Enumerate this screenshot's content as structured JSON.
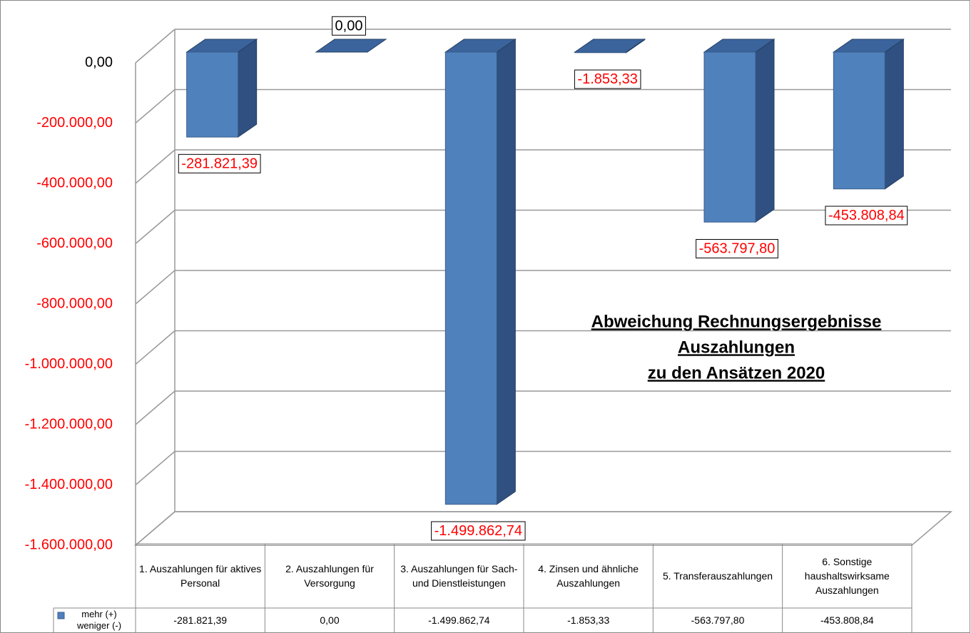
{
  "chart_data": {
    "type": "bar3d",
    "title": [
      "Abweichung Rechnungsergebnisse",
      "Auszahlungen",
      "zu den Ansätzen 2020"
    ],
    "categories": [
      "1. Auszahlungen für aktives Personal",
      "2. Auszahlungen für Versorgung",
      "3. Auszahlungen für Sach- und Dienstleistungen",
      "4. Zinsen und ähnliche Auszahlungen",
      "5. Transferauszahlungen",
      "6. Sonstige haushaltswirksame Auszahlungen"
    ],
    "series": [
      {
        "name": "mehr (+) weniger (-)",
        "color": "#4f81bd",
        "values": [
          -281821.39,
          0,
          -1499862.74,
          -1853.33,
          -563797.8,
          -453808.84
        ],
        "value_labels": [
          "-281.821,39",
          "0,00",
          "-1.499.862,74",
          "-1.853,33",
          "-563.797,80",
          "-453.808,84"
        ]
      }
    ],
    "ylim": [
      -1600000,
      0
    ],
    "yticks": [
      {
        "value": 0,
        "label": "0,00"
      },
      {
        "value": -200000,
        "label": "-200.000,00"
      },
      {
        "value": -400000,
        "label": "-400.000,00"
      },
      {
        "value": -600000,
        "label": "-600.000,00"
      },
      {
        "value": -800000,
        "label": "-800.000,00"
      },
      {
        "value": -1000000,
        "label": "-1.000.000,00"
      },
      {
        "value": -1200000,
        "label": "-1.200.000,00"
      },
      {
        "value": -1400000,
        "label": "-1.400.000,00"
      },
      {
        "value": -1600000,
        "label": "-1.600.000,00"
      }
    ],
    "grid": true,
    "negative_color": "#ff0000"
  }
}
